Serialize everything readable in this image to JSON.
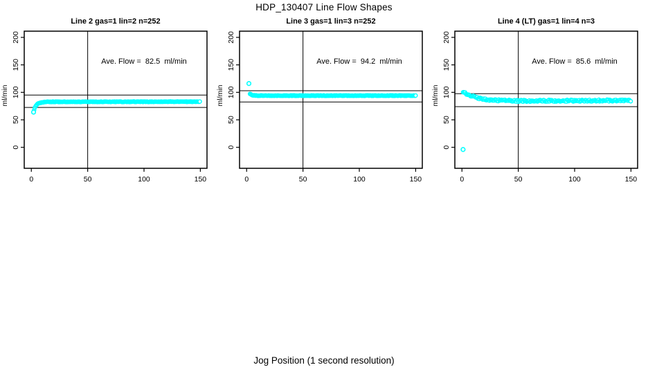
{
  "figure": {
    "main_title": "HDP_130407  Line Flow Shapes",
    "x_axis_label": "Jog Position (1 second resolution)",
    "background": "#FFFFFF",
    "axis_color": "#000000",
    "marker_color": "#00FFFF",
    "marker_fill": "#FFFFFF"
  },
  "chart_data": [
    {
      "type": "scatter",
      "title": "Line 2 gas=1 lin=2 n=252",
      "n_points": 252,
      "ylabel": "ml/min",
      "annotation": "Ave. Flow =  82.5  ml/min",
      "ave_flow_ml_min": 82.5,
      "x_ticks": [
        0,
        50,
        100,
        150
      ],
      "y_ticks": [
        0,
        50,
        100,
        150,
        200
      ],
      "xlim": [
        -6.3,
        155.9
      ],
      "ylim": [
        -38.2,
        211.3
      ],
      "vline_x": 50,
      "ref_line_upper": 95,
      "ref_line_lower": 72.5,
      "outliers": [
        [
          2,
          64
        ]
      ],
      "curve": [
        [
          2.5,
          68
        ],
        [
          3,
          71.5
        ],
        [
          4,
          75.5
        ],
        [
          5,
          78
        ],
        [
          7,
          80.5
        ],
        [
          10,
          82
        ],
        [
          15,
          82.8
        ],
        [
          150,
          83
        ]
      ],
      "x_end": 150,
      "jitter": 0.5
    },
    {
      "type": "scatter",
      "title": "Line 3 gas=1 lin=3 n=252",
      "n_points": 252,
      "ylabel": "ml/min",
      "annotation": "Ave. Flow =  94.2  ml/min",
      "ave_flow_ml_min": 94.2,
      "x_ticks": [
        0,
        50,
        100,
        150
      ],
      "y_ticks": [
        0,
        50,
        100,
        150,
        200
      ],
      "xlim": [
        -6.3,
        155.9
      ],
      "ylim": [
        -38.2,
        211.3
      ],
      "vline_x": 50,
      "ref_line_upper": 103,
      "ref_line_lower": 82.5,
      "outliers": [
        [
          2,
          116
        ]
      ],
      "curve": [
        [
          3,
          97.5
        ],
        [
          4,
          95.5
        ],
        [
          6,
          94.5
        ],
        [
          10,
          94
        ],
        [
          150,
          94
        ]
      ],
      "x_end": 150,
      "jitter": 0.5
    },
    {
      "type": "scatter",
      "title": "Line 4 (LT) gas=1 lin=4 n=3",
      "n_points": 3,
      "ylabel": "ml/min",
      "annotation": "Ave. Flow =  85.6  ml/min",
      "ave_flow_ml_min": 85.6,
      "x_ticks": [
        0,
        50,
        100,
        150
      ],
      "y_ticks": [
        0,
        50,
        100,
        150,
        200
      ],
      "xlim": [
        -6.3,
        155.9
      ],
      "ylim": [
        -38.2,
        211.3
      ],
      "vline_x": 50,
      "ref_line_upper": 97.5,
      "ref_line_lower": 74,
      "outliers": [
        [
          1,
          -4
        ]
      ],
      "curve": [
        [
          1,
          101
        ],
        [
          2,
          100
        ],
        [
          4,
          97.5
        ],
        [
          6,
          95.5
        ],
        [
          9,
          93
        ],
        [
          13,
          90.5
        ],
        [
          18,
          88
        ],
        [
          25,
          86.3
        ],
        [
          35,
          85.2
        ],
        [
          50,
          84.5
        ],
        [
          80,
          84.7
        ],
        [
          150,
          85.3
        ]
      ],
      "x_end": 150,
      "jitter": 1.6
    }
  ]
}
